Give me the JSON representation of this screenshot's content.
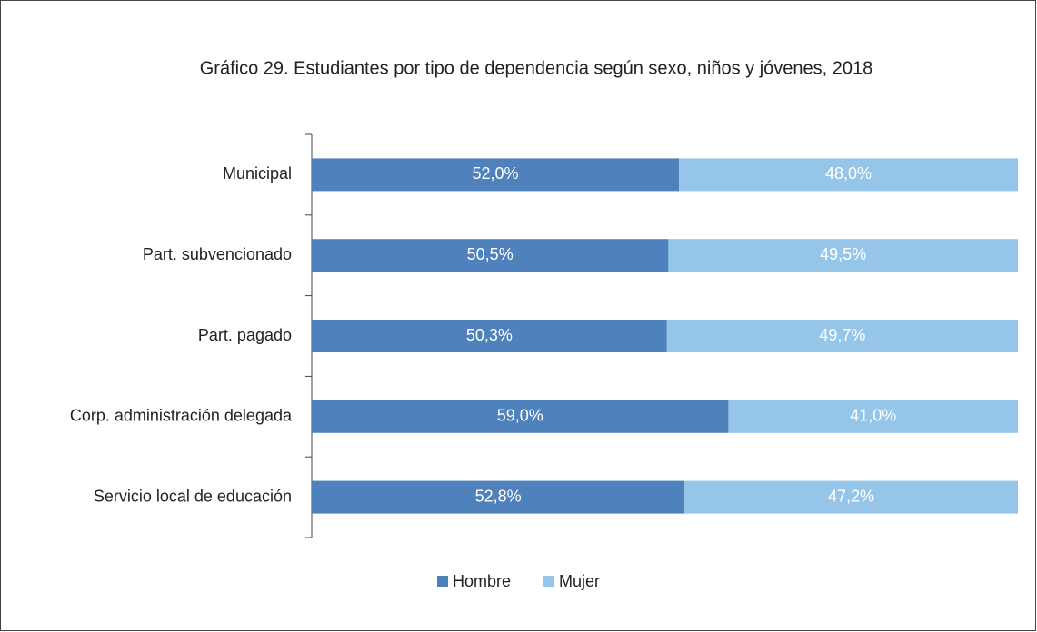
{
  "chart_data": {
    "type": "stacked-bar-horizontal",
    "title": "Gráfico 29. Estudiantes por tipo de dependencia según sexo, niños y jóvenes, 2018",
    "categories": [
      "Municipal",
      "Part. subvencionado",
      "Part. pagado",
      "Corp. administración delegada",
      "Servicio local de educación"
    ],
    "series": [
      {
        "name": "Hombre",
        "color": "#4f81bd",
        "values": [
          52.0,
          50.5,
          50.3,
          59.0,
          52.8
        ],
        "value_labels": [
          "52,0%",
          "50,5%",
          "50,3%",
          "59,0%",
          "52,8%"
        ]
      },
      {
        "name": "Mujer",
        "color": "#95c6ea",
        "values": [
          48.0,
          49.5,
          49.7,
          41.0,
          47.2
        ],
        "value_labels": [
          "48,0%",
          "49,5%",
          "49,7%",
          "41,0%",
          "47,2%"
        ]
      }
    ],
    "xlim": [
      0,
      100
    ],
    "legend": "bottom"
  }
}
